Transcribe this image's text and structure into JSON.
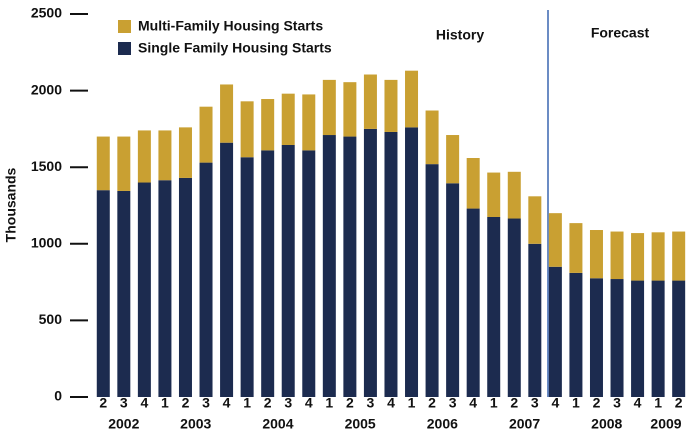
{
  "chart_data": {
    "type": "stacked_bar",
    "y_label": "Thousands",
    "annotations": [
      "History",
      "Forecast"
    ],
    "categories": [
      "2",
      "3",
      "4",
      "1",
      "2",
      "3",
      "4",
      "1",
      "2",
      "3",
      "4",
      "1",
      "2",
      "3",
      "4",
      "1",
      "2",
      "3",
      "4",
      "1",
      "2",
      "3",
      "4",
      "1",
      "2",
      "3",
      "4",
      "1",
      "2"
    ],
    "year_labels": [
      "2002",
      "2003",
      "2004",
      "2005",
      "2006",
      "2007",
      "2008",
      "2009"
    ],
    "series": [
      {
        "name": "Single Family Housing Starts",
        "color": "#1c2b4f",
        "values": [
          1350,
          1345,
          1400,
          1415,
          1430,
          1530,
          1660,
          1565,
          1610,
          1645,
          1610,
          1710,
          1700,
          1750,
          1730,
          1760,
          1520,
          1395,
          1230,
          1175,
          1165,
          1000,
          850,
          810,
          775,
          770,
          760,
          760,
          760
        ]
      },
      {
        "name": "Multi-Family Housing Starts",
        "color": "#c9a032",
        "values": [
          350,
          355,
          340,
          325,
          330,
          365,
          380,
          365,
          335,
          335,
          365,
          360,
          355,
          355,
          340,
          370,
          350,
          315,
          330,
          290,
          305,
          310,
          350,
          325,
          315,
          310,
          310,
          315,
          320
        ]
      }
    ],
    "ylim": [
      0,
      2500
    ],
    "yticks": [
      0,
      500,
      1000,
      1500,
      2000,
      2500
    ],
    "grid": false,
    "legend": "top-left"
  }
}
